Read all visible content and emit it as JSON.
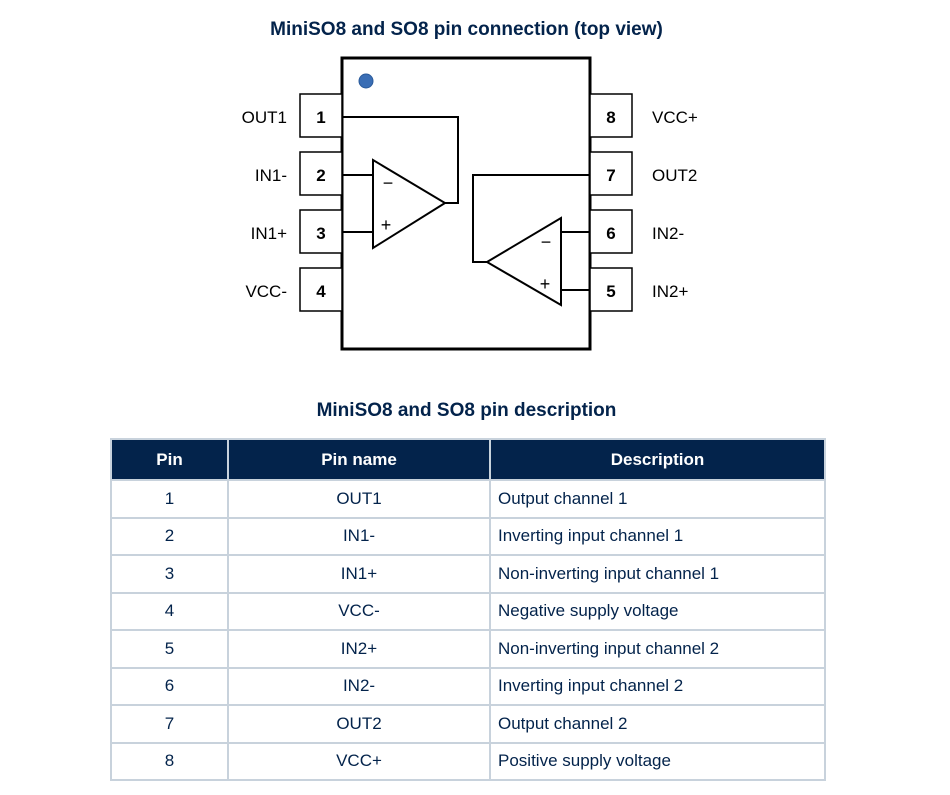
{
  "diagram": {
    "title": "MiniSO8 and SO8 pin connection (top view)",
    "pin1_marker_color": "#3a6eb5",
    "left_pins": [
      {
        "number": "1",
        "name": "OUT1"
      },
      {
        "number": "2",
        "name": "IN1-"
      },
      {
        "number": "3",
        "name": "IN1+"
      },
      {
        "number": "4",
        "name": "VCC-"
      }
    ],
    "right_pins": [
      {
        "number": "8",
        "name": "VCC+"
      },
      {
        "number": "7",
        "name": "OUT2"
      },
      {
        "number": "6",
        "name": "IN2-"
      },
      {
        "number": "5",
        "name": "IN2+"
      }
    ],
    "opamp_minus": "−",
    "opamp_plus": "+"
  },
  "table": {
    "title": "MiniSO8 and SO8 pin description",
    "header_color": "#03234b",
    "columns": [
      "Pin",
      "Pin name",
      "Description"
    ],
    "rows": [
      [
        "1",
        "OUT1",
        "Output channel 1"
      ],
      [
        "2",
        "IN1-",
        "Inverting input channel 1"
      ],
      [
        "3",
        "IN1+",
        "Non-inverting input channel 1"
      ],
      [
        "4",
        "VCC-",
        "Negative supply voltage"
      ],
      [
        "5",
        "IN2+",
        "Non-inverting input channel 2"
      ],
      [
        "6",
        "IN2-",
        "Inverting input channel 2"
      ],
      [
        "7",
        "OUT2",
        "Output channel 2"
      ],
      [
        "8",
        "VCC+",
        "Positive supply voltage"
      ]
    ]
  }
}
